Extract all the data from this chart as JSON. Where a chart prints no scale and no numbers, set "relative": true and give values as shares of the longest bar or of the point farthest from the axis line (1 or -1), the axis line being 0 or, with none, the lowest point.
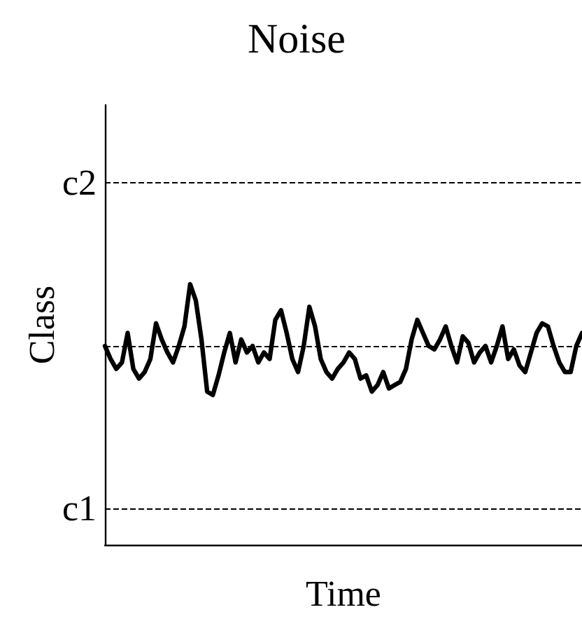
{
  "chart_data": {
    "type": "line",
    "title": "Noise",
    "xlabel": "Time",
    "ylabel": "Class",
    "relative": true,
    "categories": [
      null,
      null,
      null,
      null,
      null,
      null,
      null,
      null,
      null,
      null,
      null,
      null,
      null,
      null,
      null,
      null,
      null,
      null,
      null,
      null,
      null,
      null,
      null,
      null,
      null,
      null,
      null,
      null,
      null,
      null,
      null,
      null,
      null,
      null,
      null,
      null,
      null,
      null,
      null,
      null,
      null,
      null,
      null,
      null,
      null,
      null,
      null,
      null,
      null,
      null,
      null,
      null,
      null,
      null,
      null,
      null,
      null,
      null,
      null,
      null,
      null,
      null,
      null,
      null,
      null,
      null,
      null,
      null,
      null,
      null,
      null,
      null,
      null,
      null,
      null,
      null,
      null,
      null,
      null,
      null,
      null,
      null,
      null,
      null,
      null
    ],
    "tick_labels": false,
    "ref_lines": [
      {
        "axis": "y",
        "value": 0.138,
        "label": "c1",
        "line_style": "dashed",
        "color": "#000000"
      },
      {
        "axis": "y",
        "value": 0.763,
        "label": null,
        "line_style": "dashed",
        "color": "#000000"
      },
      {
        "axis": "y",
        "value": 1.388,
        "label": "c2",
        "line_style": "dashed",
        "color": "#000000"
      }
    ],
    "series": [
      {
        "color": "#000000",
        "line_style": "solid",
        "values": [
          0.763,
          0.713,
          0.675,
          0.7,
          0.813,
          0.675,
          0.638,
          0.663,
          0.713,
          0.85,
          0.788,
          0.738,
          0.7,
          0.763,
          0.838,
          1,
          0.938,
          0.788,
          0.588,
          0.575,
          0.65,
          0.738,
          0.813,
          0.7,
          0.788,
          0.738,
          0.763,
          0.7,
          0.738,
          0.713,
          0.863,
          0.9,
          0.813,
          0.713,
          0.663,
          0.763,
          0.913,
          0.838,
          0.713,
          0.663,
          0.638,
          0.675,
          0.7,
          0.738,
          0.713,
          0.638,
          0.65,
          0.588,
          0.613,
          0.663,
          0.6,
          0.613,
          0.625,
          0.675,
          0.788,
          0.863,
          0.813,
          0.763,
          0.75,
          0.788,
          0.838,
          0.763,
          0.7,
          0.8,
          0.775,
          0.7,
          0.738,
          0.763,
          0.7,
          0.763,
          0.838,
          0.713,
          0.75,
          0.688,
          0.663,
          0.738,
          0.813,
          0.85,
          0.838,
          0.763,
          0.7,
          0.663,
          0.663,
          0.763,
          0.813
        ]
      }
    ]
  }
}
